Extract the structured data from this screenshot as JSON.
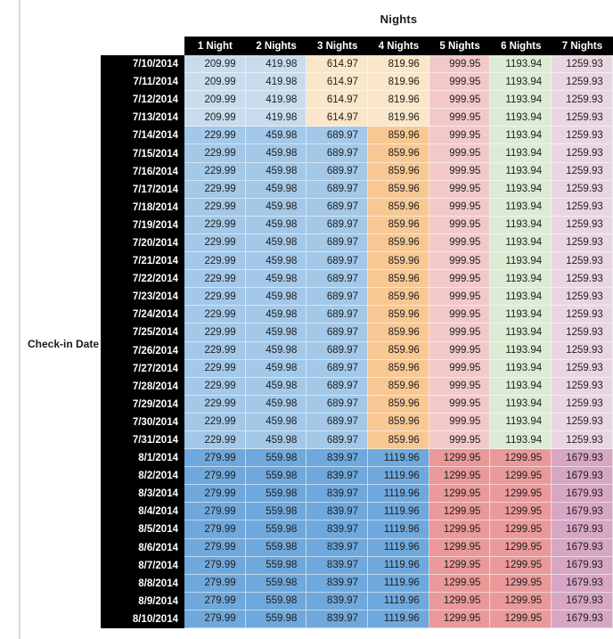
{
  "page": {
    "background": "#ffffff",
    "left_edge_line_color": "#dcdcdc"
  },
  "palette": {
    "lightBlue": "#C9DCEE",
    "paleOrange": "#FAE6C9",
    "midBlue": "#A3C8E8",
    "orange": "#F7C894",
    "palePink": "#F2C9C9",
    "paleGreen": "#DCEBD3",
    "paleLavender": "#EAD6E2",
    "strongBlue": "#6FA8DC",
    "salmon": "#EA9999",
    "mauve": "#D7A6C4",
    "header_bg": "#000000",
    "header_text": "#ffffff"
  },
  "chart_data": {
    "type": "table",
    "title": "Nights",
    "row_axis_label": "Check-in Date",
    "columns": [
      "1 Night",
      "2 Nights",
      "3 Nights",
      "4 Nights",
      "5 Nights",
      "6 Nights",
      "7 Nights"
    ],
    "row_groups": [
      {
        "dates": [
          "7/10/2014",
          "7/11/2014",
          "7/12/2014",
          "7/13/2014"
        ],
        "values": [
          "209.99",
          "419.98",
          "614.97",
          "819.96",
          "999.95",
          "1193.94",
          "1259.93"
        ],
        "cell_colors": [
          "lightBlue",
          "lightBlue",
          "paleOrange",
          "paleOrange",
          "palePink",
          "paleGreen",
          "paleLavender"
        ]
      },
      {
        "dates": [
          "7/14/2014",
          "7/15/2014",
          "7/16/2014",
          "7/17/2014",
          "7/18/2014",
          "7/19/2014",
          "7/20/2014",
          "7/21/2014",
          "7/22/2014",
          "7/23/2014",
          "7/24/2014",
          "7/25/2014",
          "7/26/2014",
          "7/27/2014",
          "7/28/2014",
          "7/29/2014",
          "7/30/2014",
          "7/31/2014"
        ],
        "values": [
          "229.99",
          "459.98",
          "689.97",
          "859.96",
          "999.95",
          "1193.94",
          "1259.93"
        ],
        "cell_colors": [
          "midBlue",
          "midBlue",
          "midBlue",
          "orange",
          "palePink",
          "paleGreen",
          "paleLavender"
        ]
      },
      {
        "dates": [
          "8/1/2014",
          "8/2/2014",
          "8/3/2014",
          "8/4/2014",
          "8/5/2014",
          "8/6/2014",
          "8/7/2014",
          "8/8/2014",
          "8/9/2014",
          "8/10/2014"
        ],
        "values": [
          "279.99",
          "559.98",
          "839.97",
          "1119.96",
          "1299.95",
          "1299.95",
          "1679.93"
        ],
        "cell_colors": [
          "strongBlue",
          "strongBlue",
          "strongBlue",
          "strongBlue",
          "salmon",
          "salmon",
          "mauve"
        ]
      }
    ]
  }
}
